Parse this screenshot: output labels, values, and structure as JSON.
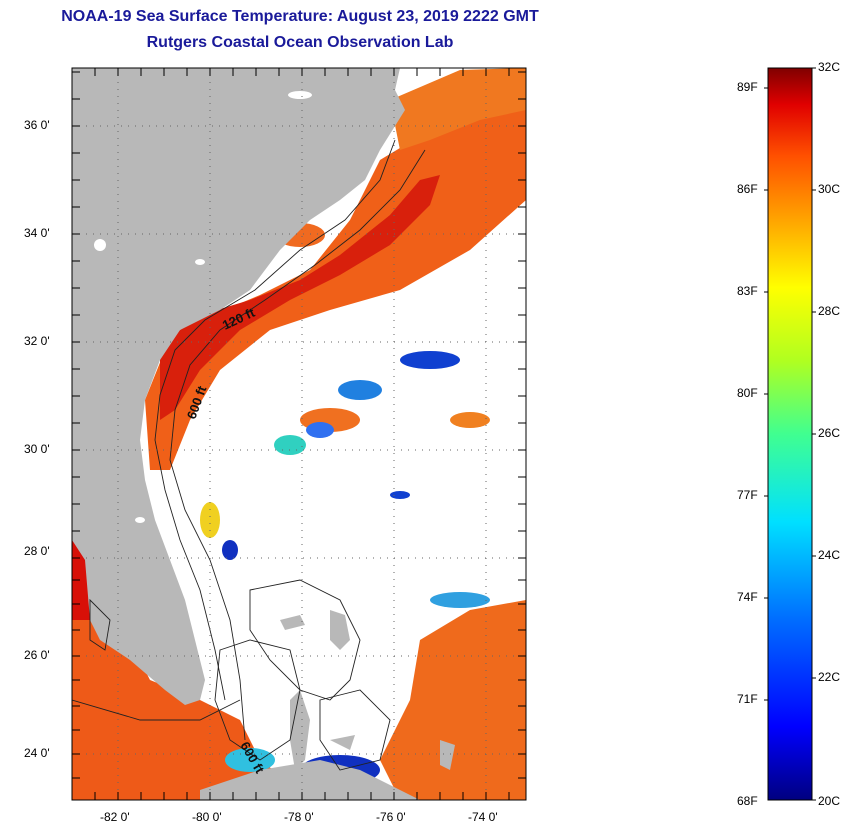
{
  "header": {
    "title": "NOAA-19 Sea Surface Temperature:  August 23, 2019 2222 GMT",
    "subtitle": "Rutgers Coastal Ocean Observation Lab"
  },
  "map": {
    "lat_labels": [
      "36 0'",
      "34 0'",
      "32 0'",
      "30 0'",
      "28 0'",
      "26 0'",
      "24 0'"
    ],
    "lon_labels": [
      "-82 0'",
      "-80 0'",
      "-78 0'",
      "-76 0'",
      "-74 0'"
    ],
    "isobath_labels": [
      "120 ft",
      "600 ft",
      "600 ft"
    ],
    "colors": {
      "land": "#b8b8b8",
      "cloud": "#ffffff",
      "warm": "#f05010",
      "hot": "#d81008"
    }
  },
  "colorbar": {
    "fahrenheit": [
      "89F",
      "86F",
      "83F",
      "80F",
      "77F",
      "74F",
      "71F",
      "68F"
    ],
    "celsius": [
      "32C",
      "30C",
      "28C",
      "26C",
      "24C",
      "22C",
      "20C"
    ],
    "range_c": [
      20,
      32
    ]
  }
}
